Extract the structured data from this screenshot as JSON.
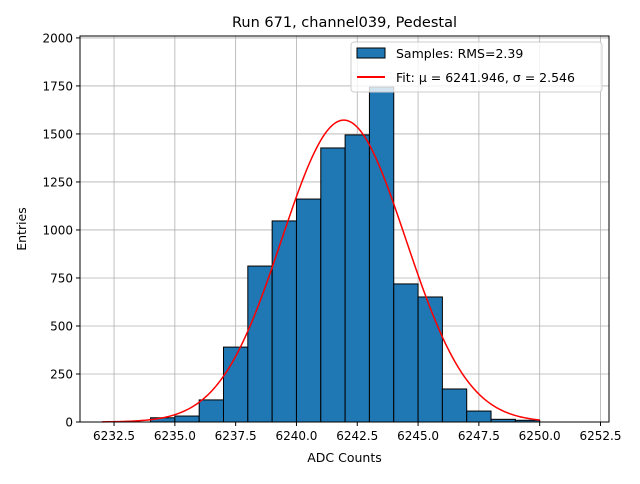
{
  "chart_data": {
    "type": "bar",
    "title": "Run 671, channel039, Pedestal",
    "xlabel": "ADC Counts",
    "ylabel": "Entries",
    "xlim": [
      6231.1,
      6252.85
    ],
    "ylim": [
      0,
      2010
    ],
    "grid": true,
    "legend_placement": "top-right",
    "x_ticks": [
      "6232.5",
      "6235.0",
      "6237.5",
      "6240.0",
      "6242.5",
      "6245.0",
      "6247.5",
      "6250.0",
      "6252.5"
    ],
    "y_ticks": [
      "0",
      "250",
      "500",
      "750",
      "1000",
      "1250",
      "1500",
      "1750",
      "2000"
    ],
    "histogram": {
      "name": "Samples: RMS=2.39",
      "color": "#1f77b4",
      "bin_edges": [
        6234,
        6235,
        6236,
        6237,
        6238,
        6239,
        6240,
        6241,
        6242,
        6243,
        6244,
        6245,
        6246,
        6247,
        6248,
        6249,
        6250
      ],
      "counts": [
        22,
        31,
        115,
        390,
        812,
        1047,
        1161,
        1427,
        1495,
        1744,
        719,
        651,
        172,
        57,
        14,
        9
      ]
    },
    "fit": {
      "name": "Fit: μ = 6241.946, σ = 2.546",
      "color": "#ff0000",
      "mu": 6241.946,
      "sigma": 2.546,
      "amplitude": 1572,
      "x_range": [
        6232,
        6250
      ]
    }
  }
}
